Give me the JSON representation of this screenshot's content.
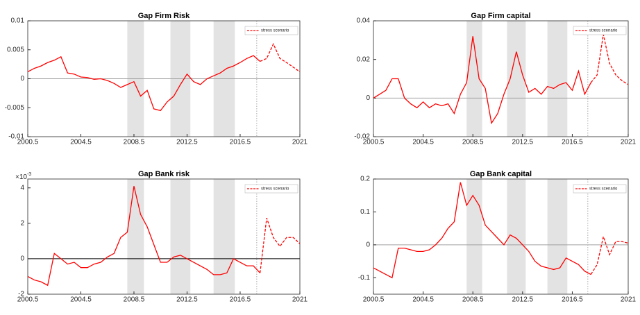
{
  "chart_data": [
    {
      "type": "line",
      "title": "Gap Firm Risk",
      "x": [
        2000.5,
        2001,
        2001.5,
        2002,
        2002.5,
        2003,
        2003.5,
        2004,
        2004.5,
        2005,
        2005.5,
        2006,
        2006.5,
        2007,
        2007.5,
        2008,
        2008.5,
        2009,
        2009.5,
        2010,
        2010.5,
        2011,
        2011.5,
        2012,
        2012.5,
        2013,
        2013.5,
        2014,
        2014.5,
        2015,
        2015.5,
        2016,
        2016.5,
        2017,
        2017.5,
        2018,
        2018.5,
        2019,
        2019.5,
        2020,
        2020.5,
        2021
      ],
      "series": [
        {
          "color": "#ff0000",
          "values": [
            0.0012,
            0.0018,
            0.0022,
            0.0028,
            0.0032,
            0.0038,
            0.001,
            0.0008,
            0.0003,
            0.0002,
            -0.0001,
            0,
            -0.0003,
            -0.0008,
            -0.0015,
            -0.001,
            -0.0005,
            -0.003,
            -0.002,
            -0.0052,
            -0.0055,
            -0.004,
            -0.003,
            -0.001,
            0.0008,
            -0.0005,
            -0.001,
            0,
            0.0005,
            0.001,
            0.0018,
            0.0022,
            0.0028,
            0.0035,
            0.004,
            0.003,
            null,
            null,
            null,
            null,
            null,
            null
          ]
        },
        {
          "name": "stress scenario",
          "color": "#ff0000",
          "dashed": true,
          "values": [
            null,
            null,
            null,
            null,
            null,
            null,
            null,
            null,
            null,
            null,
            null,
            null,
            null,
            null,
            null,
            null,
            null,
            null,
            null,
            null,
            null,
            null,
            null,
            null,
            null,
            null,
            null,
            null,
            null,
            null,
            null,
            null,
            null,
            null,
            null,
            0.003,
            0.0035,
            0.006,
            0.0035,
            0.0028,
            0.002,
            0.0012
          ]
        }
      ],
      "xlim": [
        2000.5,
        2021
      ],
      "xticks": [
        2000.5,
        2004.5,
        2008.5,
        2012.5,
        2016.5,
        2021
      ],
      "ylim": [
        -0.01,
        0.01
      ],
      "yticks": [
        -0.01,
        -0.005,
        0,
        0.005,
        0.01
      ],
      "shaded_periods": [
        [
          2008,
          2009.25
        ],
        [
          2011.25,
          2012.75
        ],
        [
          2014.5,
          2016.1
        ]
      ],
      "stress_start": 2017.75,
      "zero_line_color": "#a0a0a0",
      "legend": "upper right"
    },
    {
      "type": "line",
      "title": "Gap Firm capital",
      "x": [
        2000.5,
        2001,
        2001.5,
        2002,
        2002.5,
        2003,
        2003.5,
        2004,
        2004.5,
        2005,
        2005.5,
        2006,
        2006.5,
        2007,
        2007.5,
        2008,
        2008.5,
        2009,
        2009.5,
        2010,
        2010.5,
        2011,
        2011.5,
        2012,
        2012.5,
        2013,
        2013.5,
        2014,
        2014.5,
        2015,
        2015.5,
        2016,
        2016.5,
        2017,
        2017.5,
        2018,
        2018.5,
        2019,
        2019.5,
        2020,
        2020.5,
        2021
      ],
      "series": [
        {
          "color": "#ff0000",
          "values": [
            0,
            0.002,
            0.004,
            0.01,
            0.01,
            0,
            -0.003,
            -0.005,
            -0.002,
            -0.005,
            -0.003,
            -0.004,
            -0.003,
            -0.008,
            0.002,
            0.008,
            0.032,
            0.01,
            0.005,
            -0.013,
            -0.008,
            0.002,
            0.01,
            0.024,
            0.012,
            0.003,
            0.005,
            0.002,
            0.006,
            0.005,
            0.007,
            0.008,
            0.004,
            0.014,
            0.002,
            0.008,
            null,
            null,
            null,
            null,
            null,
            null
          ]
        },
        {
          "name": "stress scenario",
          "color": "#ff0000",
          "dashed": true,
          "values": [
            null,
            null,
            null,
            null,
            null,
            null,
            null,
            null,
            null,
            null,
            null,
            null,
            null,
            null,
            null,
            null,
            null,
            null,
            null,
            null,
            null,
            null,
            null,
            null,
            null,
            null,
            null,
            null,
            null,
            null,
            null,
            null,
            null,
            null,
            null,
            0.008,
            0.012,
            0.033,
            0.018,
            0.012,
            0.009,
            0.007
          ]
        }
      ],
      "xlim": [
        2000.5,
        2021
      ],
      "xticks": [
        2000.5,
        2004.5,
        2008.5,
        2012.5,
        2016.5,
        2021
      ],
      "ylim": [
        -0.02,
        0.04
      ],
      "yticks": [
        -0.02,
        0,
        0.02,
        0.04
      ],
      "shaded_periods": [
        [
          2008,
          2009.25
        ],
        [
          2011.25,
          2012.75
        ],
        [
          2014.5,
          2016.1
        ]
      ],
      "stress_start": 2017.75,
      "zero_line_color": "#a0a0a0",
      "legend": "upper right"
    },
    {
      "type": "line",
      "title": "Gap Bank risk",
      "y_multiplier": {
        "base": "×10",
        "exponent": "-3"
      },
      "x": [
        2000.5,
        2001,
        2001.5,
        2002,
        2002.5,
        2003,
        2003.5,
        2004,
        2004.5,
        2005,
        2005.5,
        2006,
        2006.5,
        2007,
        2007.5,
        2008,
        2008.5,
        2009,
        2009.5,
        2010,
        2010.5,
        2011,
        2011.5,
        2012,
        2012.5,
        2013,
        2013.5,
        2014,
        2014.5,
        2015,
        2015.5,
        2016,
        2016.5,
        2017,
        2017.5,
        2018,
        2018.5,
        2019,
        2019.5,
        2020,
        2020.5,
        2021
      ],
      "series": [
        {
          "color": "#ff0000",
          "values": [
            -1,
            -1.2,
            -1.3,
            -1.5,
            0.3,
            0,
            -0.3,
            -0.2,
            -0.5,
            -0.5,
            -0.3,
            -0.2,
            0.1,
            0.3,
            1.2,
            1.5,
            4.1,
            2.5,
            1.8,
            0.8,
            -0.2,
            -0.2,
            0.1,
            0.2,
            0,
            -0.2,
            -0.4,
            -0.6,
            -0.9,
            -0.9,
            -0.8,
            0,
            -0.2,
            -0.4,
            -0.4,
            -0.8,
            null,
            null,
            null,
            null,
            null,
            null
          ]
        },
        {
          "name": "stress scenario",
          "color": "#ff0000",
          "dashed": true,
          "values": [
            null,
            null,
            null,
            null,
            null,
            null,
            null,
            null,
            null,
            null,
            null,
            null,
            null,
            null,
            null,
            null,
            null,
            null,
            null,
            null,
            null,
            null,
            null,
            null,
            null,
            null,
            null,
            null,
            null,
            null,
            null,
            null,
            null,
            null,
            null,
            -0.8,
            2.3,
            1.2,
            0.7,
            1.2,
            1.2,
            0.85
          ]
        }
      ],
      "xlim": [
        2000.5,
        2021
      ],
      "xticks": [
        2000.5,
        2004.5,
        2008.5,
        2012.5,
        2016.5,
        2021
      ],
      "ylim": [
        -2,
        4.5
      ],
      "yticks": [
        -2,
        0,
        2,
        4
      ],
      "shaded_periods": [
        [
          2008,
          2009.25
        ],
        [
          2011.25,
          2012.75
        ],
        [
          2014.5,
          2016.1
        ]
      ],
      "stress_start": 2017.75,
      "zero_line_color": "#000000",
      "legend": "upper right"
    },
    {
      "type": "line",
      "title": "Gap Bank capital",
      "x": [
        2000.5,
        2001,
        2001.5,
        2002,
        2002.5,
        2003,
        2003.5,
        2004,
        2004.5,
        2005,
        2005.5,
        2006,
        2006.5,
        2007,
        2007.5,
        2008,
        2008.5,
        2009,
        2009.5,
        2010,
        2010.5,
        2011,
        2011.5,
        2012,
        2012.5,
        2013,
        2013.5,
        2014,
        2014.5,
        2015,
        2015.5,
        2016,
        2016.5,
        2017,
        2017.5,
        2018,
        2018.5,
        2019,
        2019.5,
        2020,
        2020.5,
        2021
      ],
      "series": [
        {
          "color": "#ff0000",
          "values": [
            -0.07,
            -0.08,
            -0.09,
            -0.1,
            -0.01,
            -0.01,
            -0.015,
            -0.02,
            -0.02,
            -0.015,
            0,
            0.02,
            0.05,
            0.07,
            0.19,
            0.12,
            0.15,
            0.12,
            0.06,
            0.04,
            0.02,
            0,
            0.03,
            0.02,
            0,
            -0.02,
            -0.05,
            -0.065,
            -0.07,
            -0.075,
            -0.07,
            -0.04,
            -0.05,
            -0.06,
            -0.08,
            -0.09,
            null,
            null,
            null,
            null,
            null,
            null
          ]
        },
        {
          "name": "stress scenario",
          "color": "#ff0000",
          "dashed": true,
          "values": [
            null,
            null,
            null,
            null,
            null,
            null,
            null,
            null,
            null,
            null,
            null,
            null,
            null,
            null,
            null,
            null,
            null,
            null,
            null,
            null,
            null,
            null,
            null,
            null,
            null,
            null,
            null,
            null,
            null,
            null,
            null,
            null,
            null,
            null,
            null,
            -0.09,
            -0.06,
            0.025,
            -0.03,
            0.01,
            0.01,
            0.005
          ]
        }
      ],
      "xlim": [
        2000.5,
        2021
      ],
      "xticks": [
        2000.5,
        2004.5,
        2008.5,
        2012.5,
        2016.5,
        2021
      ],
      "ylim": [
        -0.15,
        0.2
      ],
      "yticks": [
        -0.1,
        0,
        0.1,
        0.2
      ],
      "shaded_periods": [
        [
          2008,
          2009.25
        ],
        [
          2011.25,
          2012.75
        ],
        [
          2014.5,
          2016.1
        ]
      ],
      "stress_start": 2017.75,
      "zero_line_color": "#a0a0a0",
      "legend": "upper right"
    }
  ]
}
